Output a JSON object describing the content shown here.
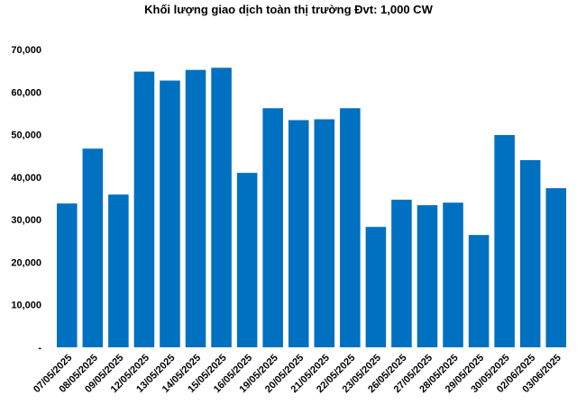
{
  "chart_data": {
    "type": "bar",
    "title": "Khối lượng giao dịch toàn thị trường Đvt: 1,000 CW",
    "categories": [
      "07/05/2025",
      "08/05/2025",
      "09/05/2025",
      "12/05/2025",
      "13/05/2025",
      "14/05/2025",
      "15/05/2025",
      "16/05/2025",
      "19/05/2025",
      "20/05/2025",
      "21/05/2025",
      "22/05/2025",
      "23/05/2025",
      "26/05/2025",
      "27/05/2025",
      "28/05/2025",
      "29/05/2025",
      "30/05/2025",
      "02/06/2025",
      "03/06/2025"
    ],
    "values": [
      33800,
      46700,
      35900,
      64800,
      62700,
      65200,
      65700,
      41000,
      56200,
      53400,
      53600,
      56200,
      28300,
      34700,
      33400,
      34000,
      26400,
      49900,
      44000,
      37400
    ],
    "ylim": [
      0,
      70000
    ],
    "yticks": [
      0,
      10000,
      20000,
      30000,
      40000,
      50000,
      60000,
      70000
    ],
    "ytick_labels": [
      "-",
      "10,000",
      "20,000",
      "30,000",
      "40,000",
      "50,000",
      "60,000",
      "70,000"
    ],
    "bar_color": "#0070C0",
    "grid": false,
    "legend": "none"
  }
}
